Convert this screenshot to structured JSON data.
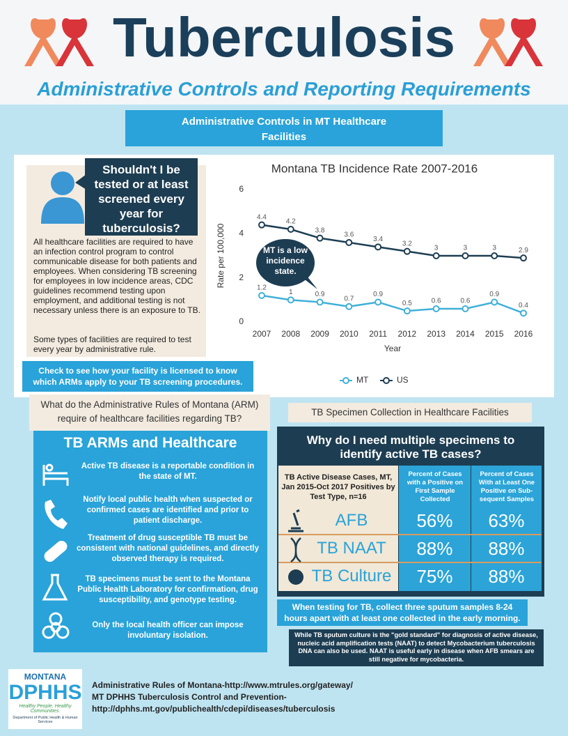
{
  "header": {
    "title": "Tuberculosis",
    "subtitle": "Administrative Controls and Reporting Requirements"
  },
  "banner": "Administrative Controls in MT Healthcare Facilities",
  "intro": {
    "question": "Shouldn't I be tested or at least screened every year for tuberculosis?",
    "paragraphs": [
      "All healthcare facilities are required to have an infection control program to control communicable disease for both patients and employees.  When considering TB screening for employees in low incidence areas, CDC guidelines recommend testing upon employment, and additional testing is not necessary unless there is an exposure to TB.",
      "Some types of facilities are required to test every year by administrative rule."
    ],
    "callout": "Check to see how your facility is licensed to know which ARMs apply to your TB screening procedures."
  },
  "chart_data": {
    "type": "line",
    "title": "Montana TB Incidence Rate 2007-2016",
    "x_label": "Year",
    "y_label": "Rate per 100,000",
    "categories": [
      "2007",
      "2008",
      "2009",
      "2010",
      "2011",
      "2012",
      "2013",
      "2014",
      "2015",
      "2016"
    ],
    "series": [
      {
        "name": "MT",
        "color": "#3fb0d8",
        "values": [
          1.2,
          1,
          0.9,
          0.7,
          0.9,
          0.5,
          0.6,
          0.6,
          0.9,
          0.4
        ]
      },
      {
        "name": "US",
        "color": "#1d3d52",
        "values": [
          4.4,
          4.2,
          3.8,
          3.6,
          3.4,
          3.2,
          3,
          3,
          3,
          2.9
        ]
      }
    ],
    "ylim": [
      0,
      6
    ],
    "yticks": [
      0,
      2,
      4,
      6
    ],
    "legend": "bottom",
    "annotation": "MT is a low incidence state."
  },
  "arms": {
    "question": "What do the Administrative Rules of Montana (ARM) require of healthcare facilities regarding TB?",
    "title": "TB ARMs and Healthcare",
    "items": [
      "Active TB disease is a reportable condition in the state of MT.",
      "Notify local public health when suspected or confirmed cases are identified and prior to patient discharge.",
      "Treatment of drug susceptible TB must be consistent with national guidelines, and directly observed therapy is required.",
      "TB specimens must be sent to the Montana Public Health Laboratory for confirmation, drug susceptibility, and genotype testing.",
      "Only the local health officer can impose involuntary isolation."
    ]
  },
  "specimens": {
    "label": "TB Specimen Collection in Healthcare Facilities",
    "title": "Why do I need multiple specimens to identify active TB cases?",
    "table": {
      "header": [
        "TB Active Disease Cases, MT, Jan 2015-Oct 2017 Positives by Test Type, n=16",
        "Percent of Cases with a Positive on First Sample Collected",
        "Percent of Cases With at Least One Positive on Sub-sequent Samples"
      ],
      "rows": [
        [
          "AFB",
          "56%",
          "63%"
        ],
        [
          "TB NAAT",
          "88%",
          "88%"
        ],
        [
          "TB Culture",
          "75%",
          "88%"
        ]
      ]
    },
    "note": "When testing for TB, collect three sputum samples 8-24 hours apart with at least one collected in the early morning.",
    "footnote": "While TB sputum culture is the \"gold standard\" for diagnosis of active disease, nucleic acid amplification tests (NAAT) to detect Mycobacterium tuberculosis DNA can also be used.  NAAT is useful early in disease when AFB smears are still negative for mycobacteria."
  },
  "footer": {
    "logo": {
      "state": "MONTANA",
      "agency": "DPHHS",
      "tagline": "Healthy People. Healthy Communities.",
      "department": "Department of Public Health & Human Services"
    },
    "references": [
      "Administrative Rules of Montana-http://www.mtrules.org/gateway/",
      "MT DPHHS Tuberculosis Control and Prevention-",
      "http://dphhs.mt.gov/publichealth/cdepi/diseases/tuberculosis"
    ]
  }
}
